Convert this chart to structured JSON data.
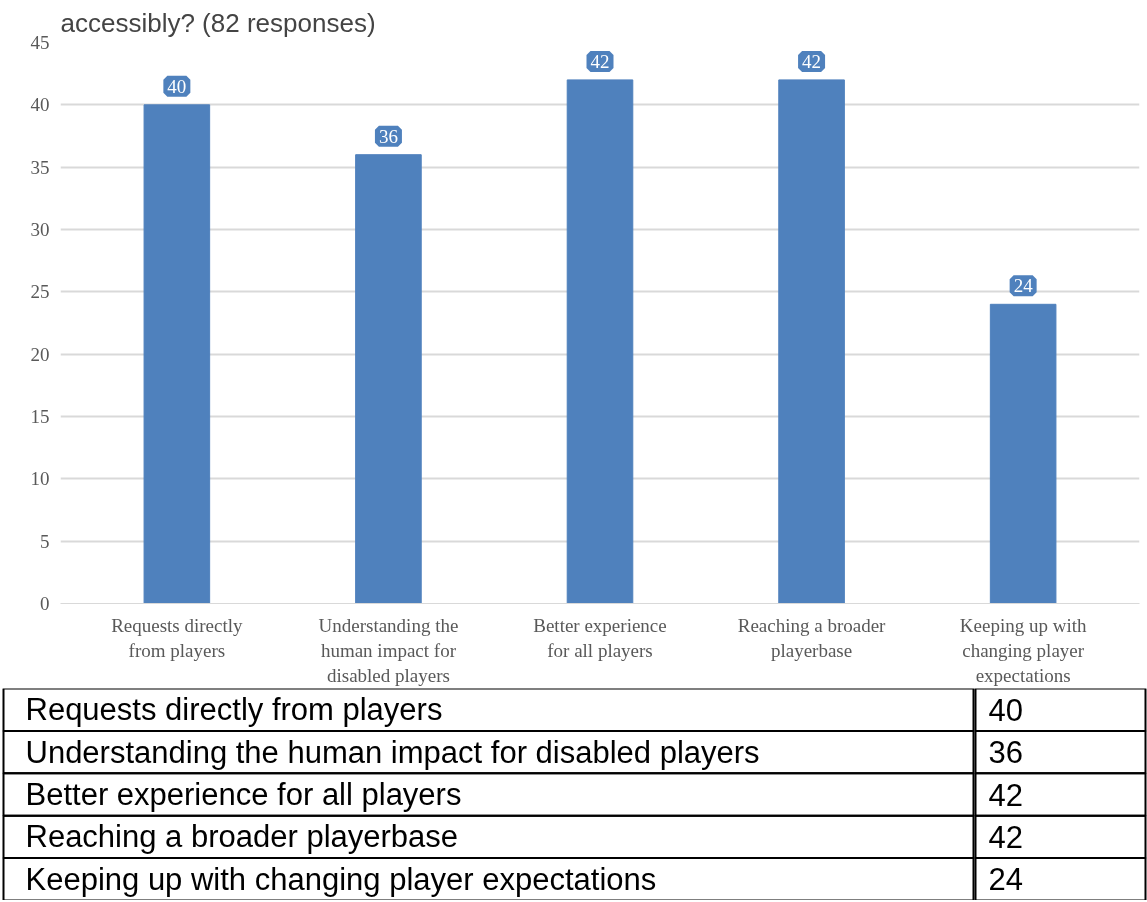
{
  "chart_data": [
    {
      "type": "bar",
      "title": "accessibly? (82 responses)",
      "categories": [
        "Requests directly from players",
        "Understanding the human impact for disabled players",
        "Better experience for all players",
        "Reaching a broader playerbase",
        "Keeping up with changing player expectations"
      ],
      "values": [
        40,
        36,
        42,
        42,
        24
      ],
      "color": "#4f81bd",
      "ylim": [
        0,
        45
      ],
      "yticks": [
        0,
        5,
        10,
        15,
        20,
        25,
        30,
        35,
        40,
        45
      ],
      "grid": "y",
      "data_labels": true
    },
    {
      "type": "other",
      "categories": [
        "Requests directly from players",
        "Understanding the human impact for disabled players",
        "Better experience for all players",
        "Reaching a broader playerbase",
        "Keeping up with changing player expectations"
      ],
      "value_labels": [
        "40",
        "36",
        "42",
        "42",
        "24"
      ]
    }
  ]
}
